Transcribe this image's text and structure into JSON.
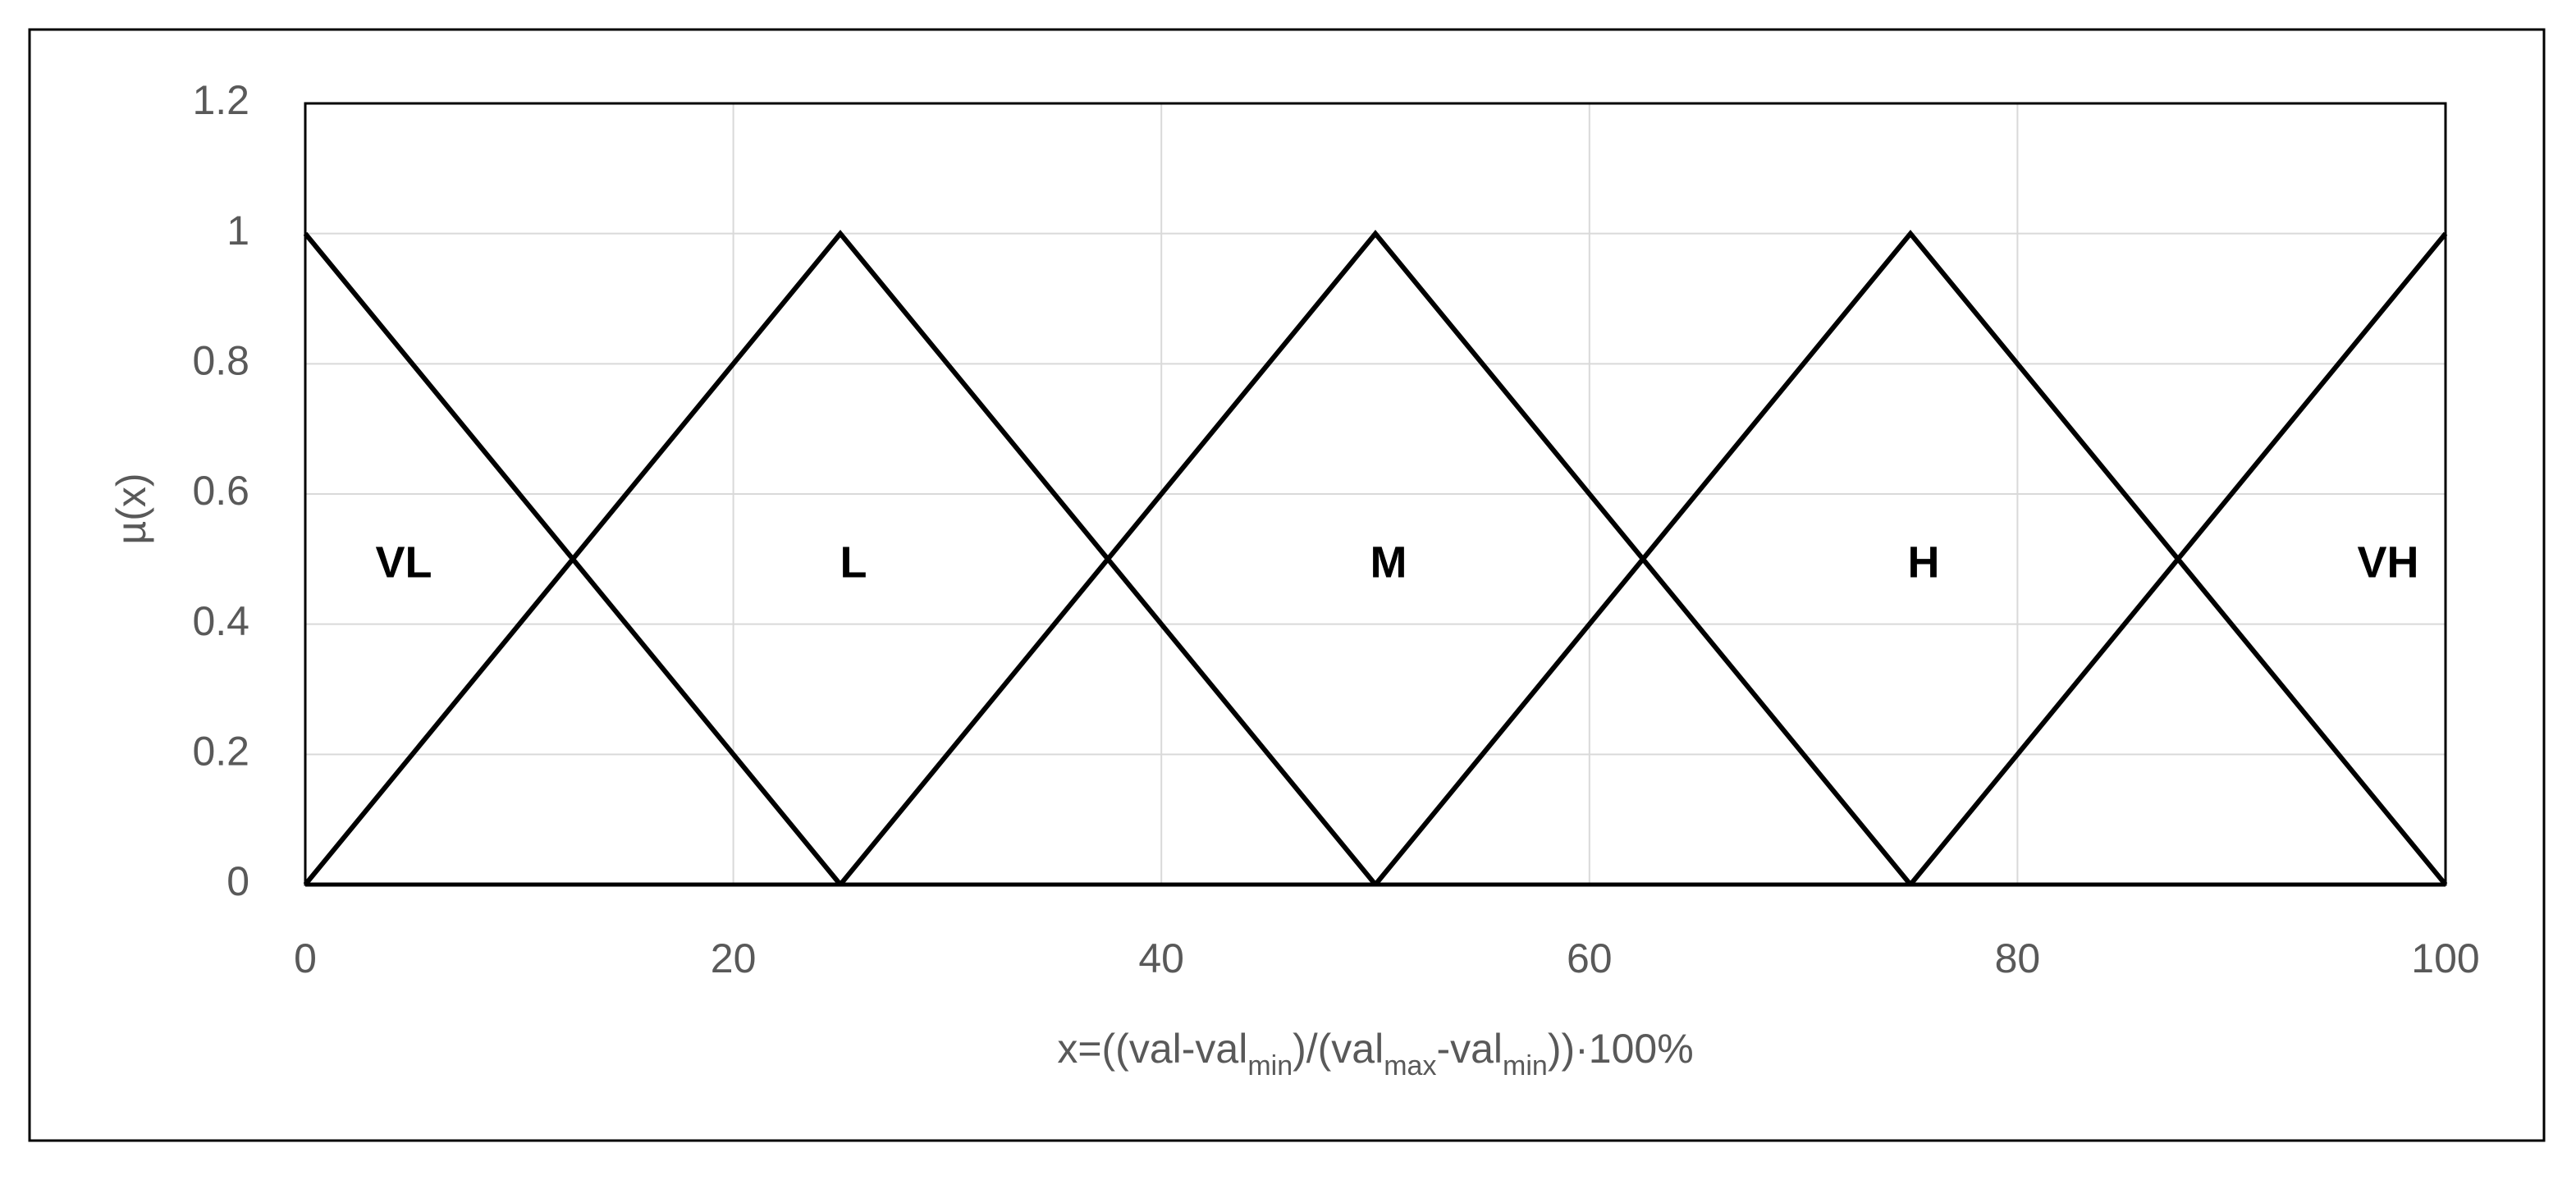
{
  "chart_data": {
    "type": "line",
    "ylabel": "µ(x)",
    "xlabel_parts": [
      {
        "text": "x=((val-val"
      },
      {
        "text": "min",
        "sub": true
      },
      {
        "text": ")/(val"
      },
      {
        "text": "max",
        "sub": true
      },
      {
        "text": "-val"
      },
      {
        "text": "min",
        "sub": true
      },
      {
        "text": "))·100%"
      }
    ],
    "xlim": [
      0,
      100
    ],
    "xticks": [
      0,
      20,
      40,
      60,
      80,
      100
    ],
    "ylim": [
      0,
      1.2
    ],
    "yticks": [
      0,
      0.2,
      0.4,
      0.6,
      0.8,
      1,
      1.2
    ],
    "grid": true,
    "series": [
      {
        "name": "VL",
        "color": "#000000",
        "x": [
          0,
          25
        ],
        "values": [
          1,
          0
        ]
      },
      {
        "name": "L",
        "color": "#000000",
        "x": [
          0,
          25,
          50
        ],
        "values": [
          0,
          1,
          0
        ]
      },
      {
        "name": "M",
        "color": "#000000",
        "x": [
          25,
          50,
          75
        ],
        "values": [
          0,
          1,
          0
        ]
      },
      {
        "name": "H",
        "color": "#000000",
        "x": [
          50,
          75,
          100
        ],
        "values": [
          0,
          1,
          0
        ]
      },
      {
        "name": "VH",
        "color": "#000000",
        "x": [
          75,
          100
        ],
        "values": [
          0,
          1
        ]
      }
    ]
  }
}
